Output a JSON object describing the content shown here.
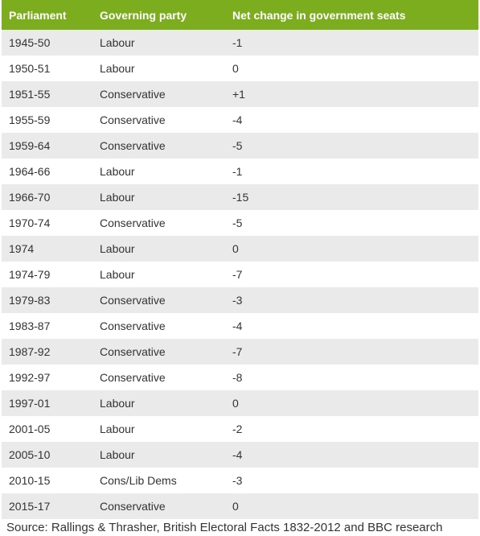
{
  "table": {
    "headers": [
      "Parliament",
      "Governing party",
      "Net change in government seats"
    ],
    "rows": [
      [
        "1945-50",
        "Labour",
        "-1"
      ],
      [
        "1950-51",
        "Labour",
        "0"
      ],
      [
        "1951-55",
        "Conservative",
        "+1"
      ],
      [
        "1955-59",
        "Conservative",
        "-4"
      ],
      [
        "1959-64",
        "Conservative",
        "-5"
      ],
      [
        "1964-66",
        "Labour",
        "-1"
      ],
      [
        "1966-70",
        "Labour",
        "-15"
      ],
      [
        "1970-74",
        "Conservative",
        "-5"
      ],
      [
        "1974",
        "Labour",
        "0"
      ],
      [
        "1974-79",
        "Labour",
        "-7"
      ],
      [
        "1979-83",
        "Conservative",
        "-3"
      ],
      [
        "1983-87",
        "Conservative",
        "-4"
      ],
      [
        "1987-92",
        "Conservative",
        "-7"
      ],
      [
        "1992-97",
        "Conservative",
        "-8"
      ],
      [
        "1997-01",
        "Labour",
        "0"
      ],
      [
        "2001-05",
        "Labour",
        "-2"
      ],
      [
        "2005-10",
        "Labour",
        "-4"
      ],
      [
        "2010-15",
        "Cons/Lib Dems",
        "-3"
      ],
      [
        "2015-17",
        "Conservative",
        "0"
      ]
    ]
  },
  "source": "Source: Rallings & Thrasher, British Electoral Facts 1832-2012 and BBC research",
  "colors": {
    "header_background": "#7cad1e",
    "header_text": "#ffffff",
    "row_stripe": "#eaeaea",
    "body_text": "#333333"
  }
}
